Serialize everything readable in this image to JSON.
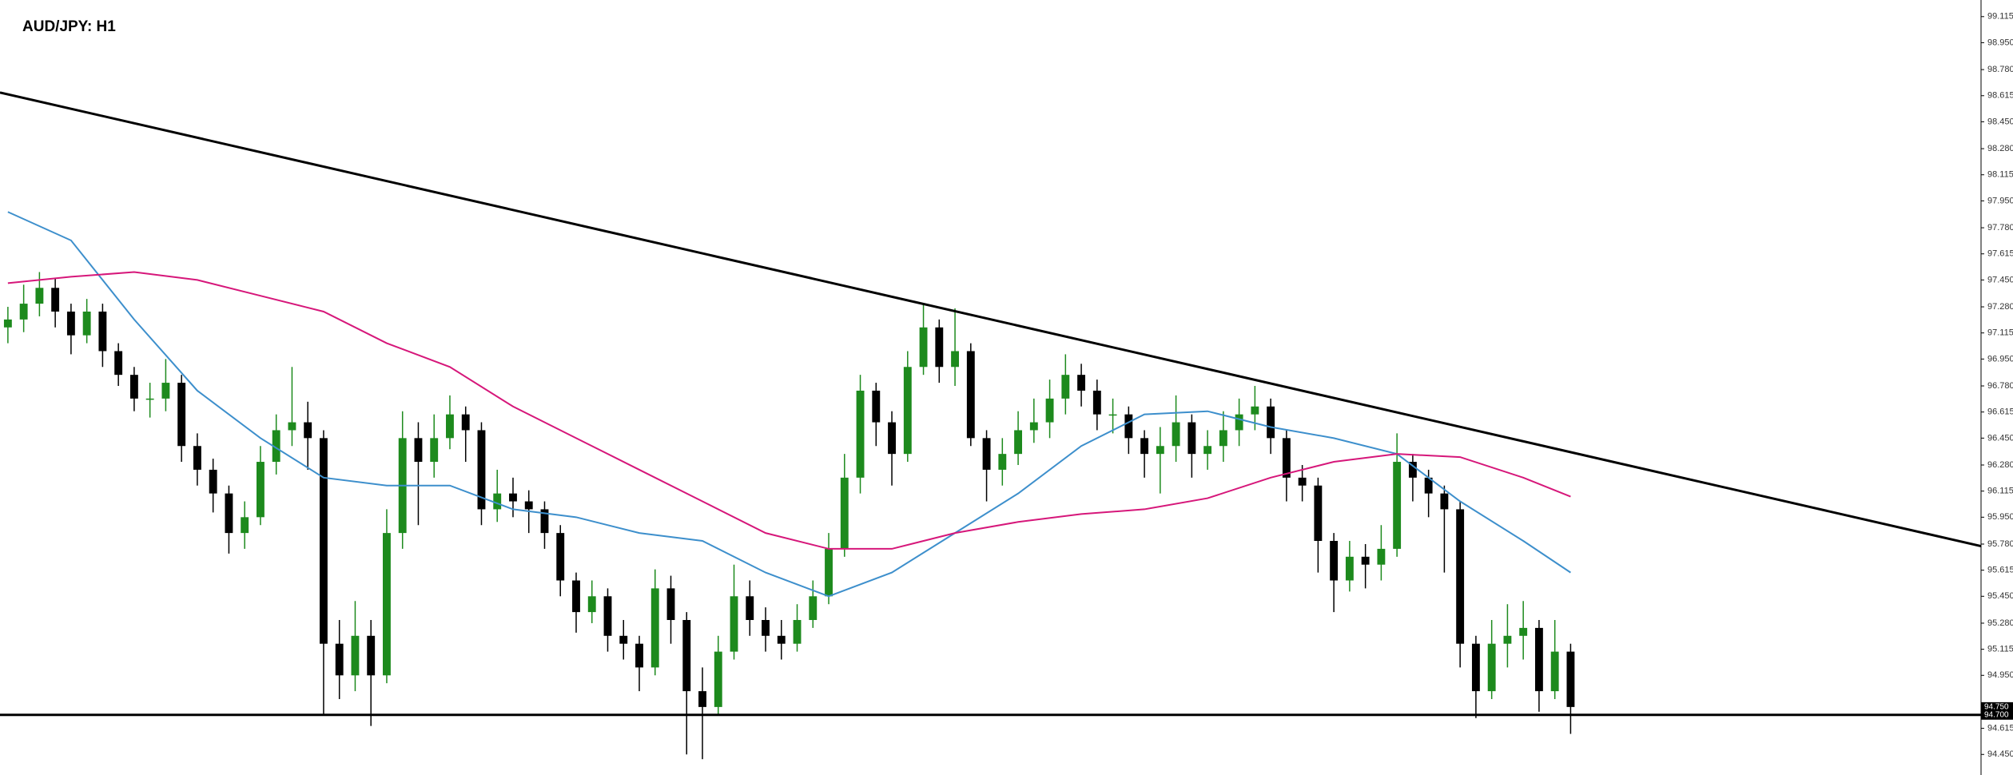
{
  "chart_data": {
    "type": "candlestick",
    "title": "AUD/JPY: H1",
    "up_color": "#1d8a1d",
    "down_color": "#000000",
    "xlim": [
      -0.5,
      125
    ],
    "ylim": [
      94.32,
      99.22
    ],
    "yticks": [
      99.115,
      {
        "value": 98.95,
        "label": "98.950"
      },
      {
        "value": 98.78,
        "label": "98.780"
      },
      98.615,
      {
        "value": 98.45,
        "label": "98.450"
      },
      {
        "value": 98.28,
        "label": "98.280"
      },
      98.115,
      {
        "value": 97.95,
        "label": "97.950"
      },
      {
        "value": 97.78,
        "label": "97.780"
      },
      97.615,
      {
        "value": 97.45,
        "label": "97.450"
      },
      {
        "value": 97.28,
        "label": "97.280"
      },
      97.115,
      {
        "value": 96.95,
        "label": "96.950"
      },
      {
        "value": 96.78,
        "label": "96.780"
      },
      96.615,
      {
        "value": 96.45,
        "label": "96.450"
      },
      {
        "value": 96.28,
        "label": "96.280"
      },
      96.115,
      {
        "value": 95.95,
        "label": "95.950"
      },
      {
        "value": 95.78,
        "label": "95.780"
      },
      95.615,
      {
        "value": 95.45,
        "label": "95.450"
      },
      {
        "value": 95.28,
        "label": "95.280"
      },
      95.115,
      {
        "value": 94.95,
        "label": "94.950"
      },
      94.615,
      {
        "value": 94.45,
        "label": "94.450"
      }
    ],
    "open": [
      97.15,
      97.2,
      97.3,
      97.4,
      97.25,
      97.1,
      97.25,
      97.0,
      96.85,
      96.7,
      96.7,
      96.8,
      96.4,
      96.25,
      96.1,
      95.85,
      95.95,
      96.3,
      96.5,
      96.55,
      96.45,
      95.15,
      94.95,
      95.2,
      94.95,
      95.85,
      96.45,
      96.3,
      96.45,
      96.6,
      96.5,
      96.0,
      96.1,
      96.05,
      96.0,
      95.85,
      95.55,
      95.35,
      95.45,
      95.2,
      95.15,
      95.0,
      95.5,
      95.3,
      94.85,
      94.75,
      95.1,
      95.45,
      95.3,
      95.2,
      95.15,
      95.3,
      95.45,
      95.75,
      96.2,
      96.75,
      96.55,
      96.35,
      96.9,
      97.15,
      96.9,
      97.0,
      96.45,
      96.25,
      96.35,
      96.5,
      96.55,
      96.7,
      96.85,
      96.75,
      96.6,
      96.6,
      96.45,
      96.35,
      96.4,
      96.55,
      96.35,
      96.4,
      96.5,
      96.6,
      96.65,
      96.45,
      96.2,
      96.15,
      95.8,
      95.55,
      95.7,
      95.65,
      95.75,
      96.3,
      96.2,
      96.1,
      96.0,
      95.15,
      94.85,
      95.15,
      95.2,
      95.25,
      94.85,
      95.1
    ],
    "high": [
      97.28,
      97.42,
      97.5,
      97.46,
      97.3,
      97.33,
      97.3,
      97.05,
      96.9,
      96.8,
      96.95,
      96.85,
      96.48,
      96.32,
      96.15,
      96.05,
      96.4,
      96.6,
      96.9,
      96.68,
      96.5,
      95.3,
      95.42,
      95.3,
      96.0,
      96.62,
      96.55,
      96.6,
      96.72,
      96.65,
      96.55,
      96.25,
      96.2,
      96.12,
      96.05,
      95.9,
      95.6,
      95.55,
      95.5,
      95.3,
      95.2,
      95.62,
      95.58,
      95.35,
      95.0,
      95.2,
      95.65,
      95.55,
      95.38,
      95.3,
      95.4,
      95.55,
      95.85,
      96.35,
      96.85,
      96.8,
      96.62,
      97.0,
      97.3,
      97.2,
      97.27,
      97.05,
      96.5,
      96.45,
      96.62,
      96.7,
      96.82,
      96.98,
      96.92,
      96.82,
      96.7,
      96.65,
      96.5,
      96.52,
      96.72,
      96.6,
      96.5,
      96.62,
      96.7,
      96.78,
      96.7,
      96.5,
      96.28,
      96.2,
      95.85,
      95.8,
      95.78,
      95.9,
      96.48,
      96.35,
      96.25,
      96.15,
      96.05,
      95.2,
      95.3,
      95.4,
      95.42,
      95.3,
      95.3,
      95.15
    ],
    "low": [
      97.05,
      97.12,
      97.22,
      97.15,
      96.98,
      97.05,
      96.9,
      96.78,
      96.62,
      96.58,
      96.62,
      96.3,
      96.15,
      95.98,
      95.72,
      95.75,
      95.9,
      96.22,
      96.4,
      96.25,
      94.7,
      94.8,
      94.85,
      94.63,
      94.9,
      95.75,
      95.9,
      96.2,
      96.38,
      96.3,
      95.9,
      95.92,
      95.95,
      95.85,
      95.75,
      95.45,
      95.22,
      95.28,
      95.1,
      95.05,
      94.85,
      94.95,
      95.15,
      94.45,
      94.42,
      94.7,
      95.05,
      95.2,
      95.1,
      95.05,
      95.1,
      95.25,
      95.4,
      95.7,
      96.1,
      96.4,
      96.15,
      96.3,
      96.85,
      96.8,
      96.78,
      96.4,
      96.05,
      96.15,
      96.28,
      96.42,
      96.45,
      96.6,
      96.65,
      96.5,
      96.48,
      96.35,
      96.2,
      96.1,
      96.3,
      96.2,
      96.25,
      96.3,
      96.4,
      96.5,
      96.35,
      96.05,
      96.05,
      95.6,
      95.35,
      95.48,
      95.5,
      95.55,
      95.7,
      96.05,
      95.95,
      95.6,
      95.0,
      94.68,
      94.8,
      95.0,
      95.05,
      94.72,
      94.8,
      94.58
    ],
    "close": [
      97.2,
      97.3,
      97.4,
      97.25,
      97.1,
      97.25,
      97.0,
      96.85,
      96.7,
      96.7,
      96.8,
      96.4,
      96.25,
      96.1,
      95.85,
      95.95,
      96.3,
      96.5,
      96.55,
      96.45,
      95.15,
      94.95,
      95.2,
      94.95,
      95.85,
      96.45,
      96.3,
      96.45,
      96.6,
      96.5,
      96.0,
      96.1,
      96.05,
      96.0,
      95.85,
      95.55,
      95.35,
      95.45,
      95.2,
      95.15,
      95.0,
      95.5,
      95.3,
      94.85,
      94.75,
      95.1,
      95.45,
      95.3,
      95.2,
      95.15,
      95.3,
      95.45,
      95.75,
      96.2,
      96.75,
      96.55,
      96.35,
      96.9,
      97.15,
      96.9,
      97.0,
      96.45,
      96.25,
      96.35,
      96.5,
      96.55,
      96.7,
      96.85,
      96.75,
      96.6,
      96.6,
      96.45,
      96.35,
      96.4,
      96.55,
      96.35,
      96.4,
      96.5,
      96.6,
      96.65,
      96.45,
      96.2,
      96.15,
      95.8,
      95.55,
      95.7,
      95.65,
      95.75,
      96.3,
      96.2,
      96.1,
      96.0,
      95.15,
      94.85,
      95.15,
      95.2,
      95.25,
      94.85,
      95.1,
      94.75
    ],
    "lines": [
      {
        "color": "#3d8fcc",
        "x": [
          0,
          4,
          8,
          12,
          16,
          20,
          24,
          28,
          32,
          36,
          40,
          44,
          48,
          52,
          56,
          60,
          64,
          68,
          72,
          76,
          80,
          84,
          88,
          92,
          96,
          99
        ],
        "values": [
          97.88,
          97.7,
          97.2,
          96.75,
          96.45,
          96.2,
          96.15,
          96.15,
          96.0,
          95.95,
          95.85,
          95.8,
          95.6,
          95.45,
          95.6,
          95.85,
          96.1,
          96.4,
          96.6,
          96.62,
          96.52,
          96.45,
          96.35,
          96.05,
          95.8,
          95.6
        ]
      },
      {
        "color": "#d6177a",
        "x": [
          0,
          4,
          8,
          12,
          16,
          20,
          24,
          28,
          32,
          36,
          40,
          44,
          48,
          52,
          56,
          60,
          64,
          68,
          72,
          76,
          80,
          84,
          88,
          92,
          96,
          99
        ],
        "values": [
          97.43,
          97.47,
          97.5,
          97.45,
          97.35,
          97.25,
          97.05,
          96.9,
          96.65,
          96.45,
          96.25,
          96.05,
          95.85,
          95.75,
          95.75,
          95.85,
          95.92,
          95.97,
          96.0,
          96.07,
          96.2,
          96.3,
          96.35,
          96.33,
          96.2,
          96.08
        ]
      }
    ],
    "trendline": {
      "color": "#000000",
      "x": [
        -0.5,
        125
      ],
      "y": [
        98.635,
        95.767
      ]
    },
    "level": {
      "color": "#000000",
      "value": 94.7
    },
    "price_labels": [
      {
        "value": 94.75,
        "label": "94.750"
      },
      {
        "value": 94.7,
        "label": "94.700"
      }
    ]
  }
}
